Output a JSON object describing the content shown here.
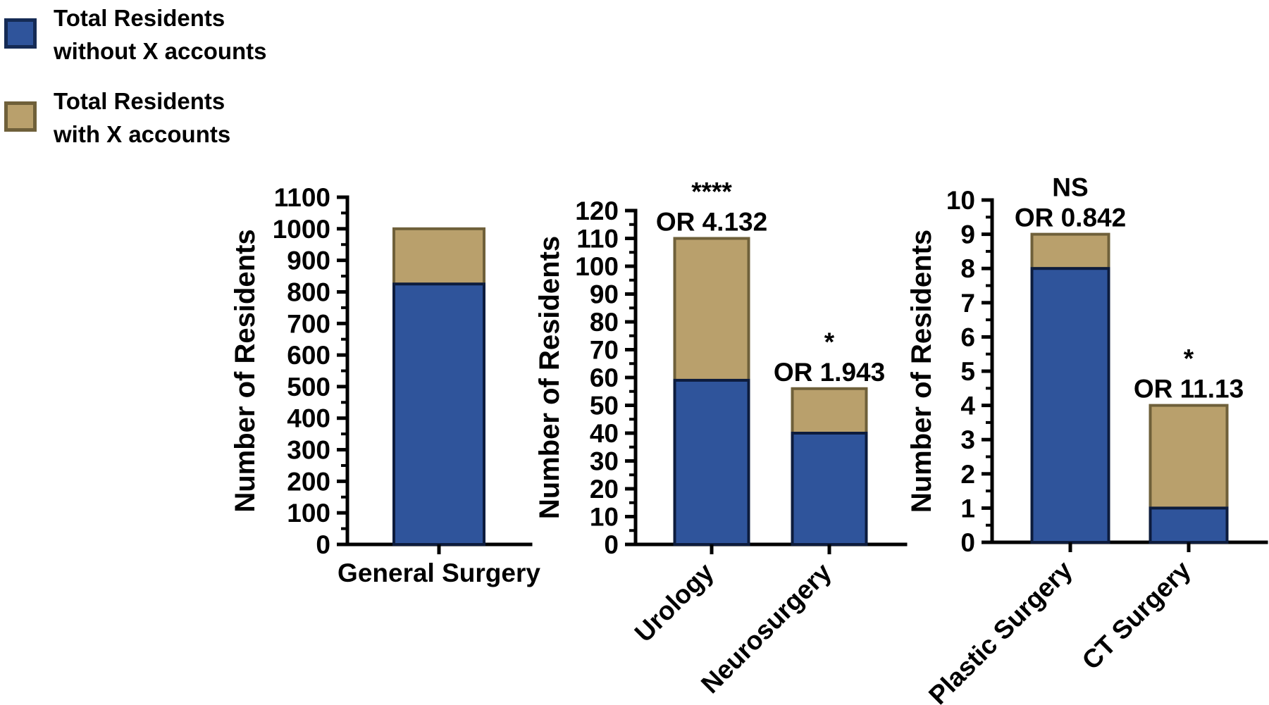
{
  "legend": {
    "items": [
      {
        "line1": "Total Residents",
        "line2": "without X accounts",
        "swatch_color": "#2F549B",
        "swatch_border": "#152B55"
      },
      {
        "line1": "Total Residents",
        "line2": "with X accounts",
        "swatch_color": "#B9A06C",
        "swatch_border": "#6F603A"
      }
    ]
  },
  "colors": {
    "blue_fill": "#2F549B",
    "blue_border": "#0D1C3D",
    "tan_fill": "#B9A06C",
    "tan_border": "#6F603A",
    "axis": "#000000",
    "text": "#000000"
  },
  "chart_data": [
    {
      "type": "bar",
      "stacked": true,
      "title": "",
      "xlabel": "",
      "ylabel": "Number of Residents",
      "categories": [
        "General Surgery"
      ],
      "series": [
        {
          "name": "Total Residents without X accounts",
          "values": [
            825
          ]
        },
        {
          "name": "Total Residents with X accounts",
          "values": [
            175
          ]
        }
      ],
      "totals": [
        1000
      ],
      "ylim": [
        0,
        1100
      ],
      "ytick_interval": 100,
      "yminor_interval": 50,
      "ytick_labels": [
        "0",
        "100",
        "200",
        "300",
        "400",
        "500",
        "600",
        "700",
        "800",
        "900",
        "1000",
        "1100"
      ],
      "grid": false,
      "annotations": []
    },
    {
      "type": "bar",
      "stacked": true,
      "title": "",
      "xlabel": "",
      "ylabel": "Number of Residents",
      "categories": [
        "Urology",
        "Neurosurgery"
      ],
      "series": [
        {
          "name": "Total Residents without X accounts",
          "values": [
            59,
            40
          ]
        },
        {
          "name": "Total Residents with X accounts",
          "values": [
            51,
            16
          ]
        }
      ],
      "totals": [
        110,
        56
      ],
      "ylim": [
        0,
        120
      ],
      "ytick_interval": 10,
      "yminor_interval": 5,
      "ytick_labels": [
        "0",
        "10",
        "20",
        "30",
        "40",
        "50",
        "60",
        "70",
        "80",
        "90",
        "100",
        "110",
        "120"
      ],
      "grid": false,
      "annotations": [
        {
          "significance": "****",
          "odds_ratio": "OR 4.132"
        },
        {
          "significance": "*",
          "odds_ratio": "OR 1.943"
        }
      ]
    },
    {
      "type": "bar",
      "stacked": true,
      "title": "",
      "xlabel": "",
      "ylabel": "Number of Residents",
      "categories": [
        "Plastic Surgery",
        "CT Surgery"
      ],
      "series": [
        {
          "name": "Total Residents without X accounts",
          "values": [
            8,
            1
          ]
        },
        {
          "name": "Total Residents with X accounts",
          "values": [
            1,
            3
          ]
        }
      ],
      "totals": [
        9,
        4
      ],
      "ylim": [
        0,
        10
      ],
      "ytick_interval": 1,
      "yminor_interval": 0.5,
      "ytick_labels": [
        "0",
        "1",
        "2",
        "3",
        "4",
        "5",
        "6",
        "7",
        "8",
        "9",
        "10"
      ],
      "grid": false,
      "annotations": [
        {
          "significance": "NS",
          "odds_ratio": "OR 0.842"
        },
        {
          "significance": "*",
          "odds_ratio": "OR 11.13"
        }
      ]
    }
  ]
}
